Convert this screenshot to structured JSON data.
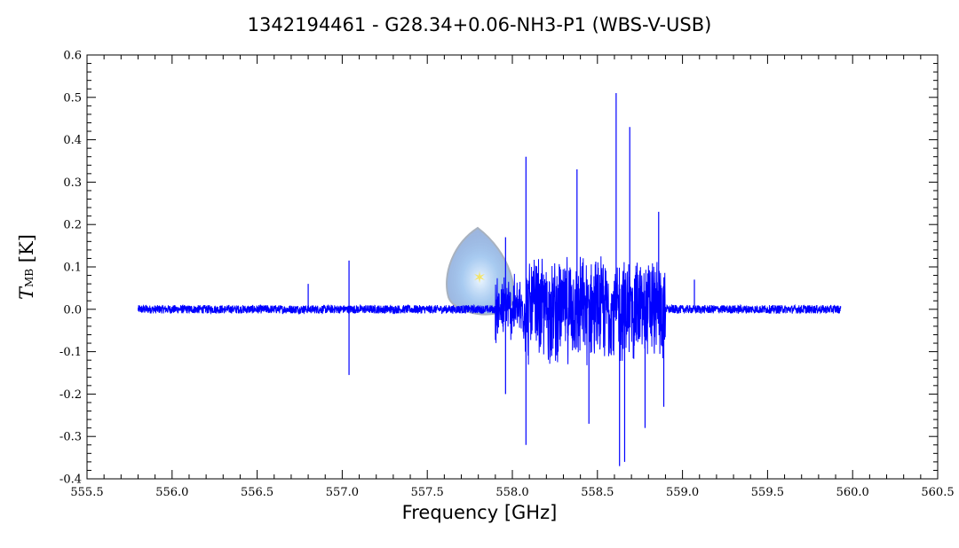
{
  "chart_data": {
    "type": "line",
    "title": "1342194461 - G28.34+0.06-NH3-P1 (WBS-V-USB)",
    "xlabel": "Frequency [GHz]",
    "ylabel": {
      "main": "T",
      "sub": "MB",
      "unit": "[K]"
    },
    "xlim": [
      555.5,
      560.5
    ],
    "ylim": [
      -0.4,
      0.6
    ],
    "xticks": [
      "555.5",
      "556.0",
      "556.5",
      "557.0",
      "557.5",
      "558.0",
      "558.5",
      "559.0",
      "559.5",
      "560.0",
      "560.5"
    ],
    "yticks": [
      "0.6",
      "0.5",
      "0.4",
      "0.3",
      "0.2",
      "0.1",
      "0.0",
      "-0.1",
      "-0.2",
      "-0.3",
      "-0.4"
    ],
    "series_color": "#0000ff",
    "series": [
      {
        "x_range": [
          555.8,
          559.93
        ],
        "segments": [
          {
            "x": [
              555.8,
              557.9
            ],
            "noise_amplitude": 0.01
          },
          {
            "x": [
              557.9,
              558.07
            ],
            "noise_amplitude": 0.09
          },
          {
            "x": [
              558.07,
              558.9
            ],
            "noise_amplitude": 0.14
          },
          {
            "x": [
              558.9,
              559.93
            ],
            "noise_amplitude": 0.01
          }
        ],
        "spikes": [
          {
            "x": 556.8,
            "y": 0.06
          },
          {
            "x": 557.04,
            "y": 0.115
          },
          {
            "x": 557.04,
            "y": -0.155
          },
          {
            "x": 558.08,
            "y": 0.36
          },
          {
            "x": 558.08,
            "y": -0.32
          },
          {
            "x": 558.61,
            "y": 0.51
          },
          {
            "x": 558.63,
            "y": -0.37
          },
          {
            "x": 558.66,
            "y": -0.36
          },
          {
            "x": 558.69,
            "y": 0.43
          },
          {
            "x": 558.38,
            "y": 0.33
          },
          {
            "x": 558.45,
            "y": -0.27
          },
          {
            "x": 558.78,
            "y": -0.28
          },
          {
            "x": 558.86,
            "y": 0.23
          },
          {
            "x": 558.89,
            "y": -0.23
          },
          {
            "x": 557.96,
            "y": 0.17
          },
          {
            "x": 557.96,
            "y": -0.2
          },
          {
            "x": 559.07,
            "y": 0.07
          }
        ]
      }
    ]
  },
  "logo": {
    "name": "herschel-logo-icon"
  }
}
